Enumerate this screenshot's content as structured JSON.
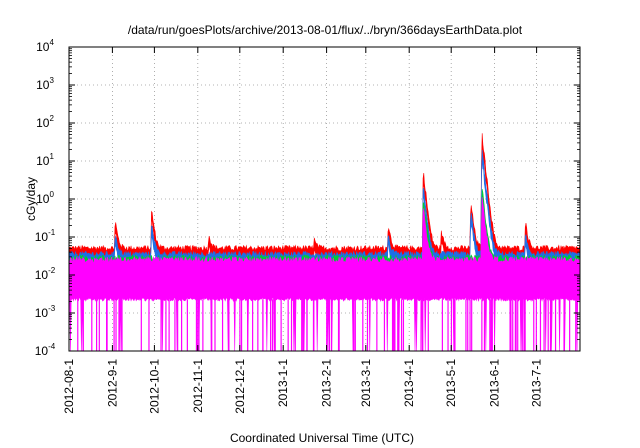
{
  "chart_data": {
    "type": "line",
    "title": "/data/run/goesPlots/archive/2013-08-01/flux/../bryn/366daysEarthData.plot",
    "xlabel": "Coordinated Universal Time (UTC)",
    "ylabel": "cGy/day",
    "yscale": "log",
    "ylim": [
      0.0001,
      10000
    ],
    "xlim": [
      "2012-08-01",
      "2013-08-01"
    ],
    "grid": true,
    "legend": "none",
    "x_tick_labels": [
      "2012-08-1",
      "2012-9-1",
      "2012-10-1",
      "2012-11-1",
      "2012-12-1",
      "2013-1-1",
      "2013-2-1",
      "2013-3-1",
      "2013-4-1",
      "2013-5-1",
      "2013-6-1",
      "2013-7-1"
    ],
    "x_ticks": [
      "2012-08-01",
      "2012-09-01",
      "2012-10-01",
      "2012-11-01",
      "2012-12-01",
      "2013-01-01",
      "2013-02-01",
      "2013-03-01",
      "2013-04-01",
      "2013-05-01",
      "2013-06-01",
      "2013-07-01"
    ],
    "y_ticks": [
      {
        "base": "10",
        "exp": "-4",
        "value": 0.0001
      },
      {
        "base": "10",
        "exp": "-3",
        "value": 0.001
      },
      {
        "base": "10",
        "exp": "-2",
        "value": 0.01
      },
      {
        "base": "10",
        "exp": "-1",
        "value": 0.1
      },
      {
        "base": "10",
        "exp": "0",
        "value": 1
      },
      {
        "base": "10",
        "exp": "1",
        "value": 10
      },
      {
        "base": "10",
        "exp": "2",
        "value": 100
      },
      {
        "base": "10",
        "exp": "3",
        "value": 1000
      },
      {
        "base": "10",
        "exp": "4",
        "value": 10000
      }
    ],
    "series": [
      {
        "color": "#ff0000",
        "baseline": 0.05,
        "events": [
          [
            "2012-09-03",
            0.28
          ],
          [
            "2012-09-29",
            0.55
          ],
          [
            "2012-11-09",
            0.12
          ],
          [
            "2013-01-23",
            0.09
          ],
          [
            "2013-03-17",
            0.23
          ],
          [
            "2013-04-11",
            5.8
          ],
          [
            "2013-04-24",
            0.15
          ],
          [
            "2013-05-15",
            0.85
          ],
          [
            "2013-05-23",
            50
          ],
          [
            "2013-06-23",
            0.28
          ]
        ]
      },
      {
        "color": "#1e6fe6",
        "baseline": 0.035,
        "events": [
          [
            "2012-09-03",
            0.14
          ],
          [
            "2012-09-29",
            0.25
          ],
          [
            "2013-03-17",
            0.12
          ],
          [
            "2013-04-11",
            2.5
          ],
          [
            "2013-05-15",
            0.5
          ],
          [
            "2013-05-23",
            20
          ],
          [
            "2013-06-23",
            0.12
          ]
        ]
      },
      {
        "color": "#00cc33",
        "baseline": 0.028,
        "events": [
          [
            "2013-04-11",
            1.2
          ],
          [
            "2013-05-23",
            2.0
          ]
        ]
      },
      {
        "color": "#ff00ff",
        "baseline": 0.025,
        "floor": 0.0023,
        "dropout_min": 0.0001,
        "events": [
          [
            "2013-04-11",
            0.7
          ],
          [
            "2013-05-23",
            1.2
          ]
        ]
      }
    ]
  }
}
